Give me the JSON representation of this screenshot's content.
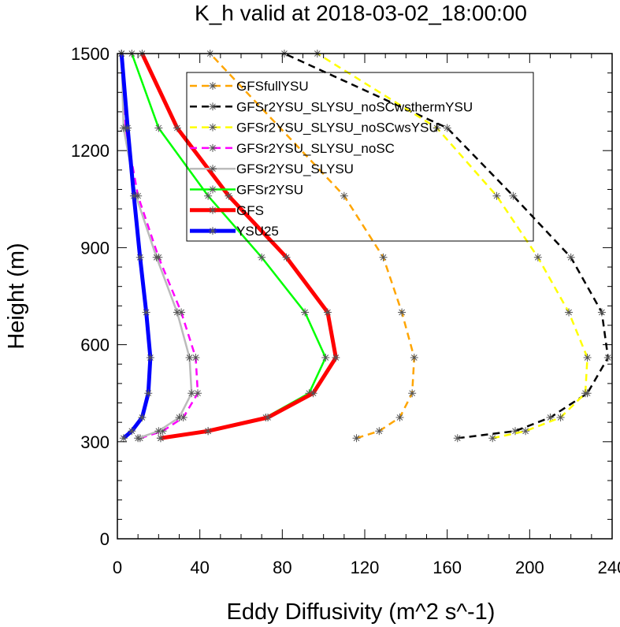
{
  "chart_data": {
    "type": "line",
    "title": "K_h valid at 2018-03-02_18:00:00",
    "xlabel": "Eddy Diffusivity (m^2 s^-1)",
    "ylabel": "Height (m)",
    "xlim": [
      0,
      240
    ],
    "ylim": [
      0,
      1500
    ],
    "xticks": [
      "0",
      "40",
      "80",
      "120",
      "160",
      "200",
      "240"
    ],
    "yticks": [
      "0",
      "300",
      "600",
      "900",
      "1200",
      "1500"
    ],
    "xtick_values": [
      0,
      40,
      80,
      120,
      160,
      200,
      240
    ],
    "ytick_values": [
      0,
      300,
      600,
      900,
      1200,
      1500
    ],
    "legend_position": "top-center",
    "series": [
      {
        "name": "GFSfullYSU",
        "color": "#ffa500",
        "dash": "dashed",
        "width": 2.5,
        "markers": true,
        "x": [
          116,
          127,
          137,
          143,
          144,
          138,
          129,
          110,
          45
        ],
        "y": [
          311,
          333,
          375,
          450,
          560,
          700,
          870,
          1060,
          1500
        ]
      },
      {
        "name": "GFSr2YSU_SLYSU_noSCwsthermYSU",
        "color": "#000000",
        "dash": "dashed",
        "width": 2.5,
        "markers": true,
        "x": [
          165,
          193,
          210,
          228,
          238,
          235,
          220,
          192,
          160,
          81
        ],
        "y": [
          311,
          333,
          375,
          450,
          560,
          700,
          870,
          1060,
          1270,
          1500
        ]
      },
      {
        "name": "GFSr2YSU_SLYSU_noSCwsYSU",
        "color": "#ffff00",
        "dash": "dashed",
        "width": 2.5,
        "markers": true,
        "x": [
          182,
          198,
          215,
          227,
          228,
          219,
          204,
          184,
          155,
          97
        ],
        "y": [
          311,
          333,
          375,
          450,
          560,
          700,
          870,
          1060,
          1270,
          1500
        ]
      },
      {
        "name": "GFSr2YSU_SLYSU_noSC",
        "color": "#ff00ff",
        "dash": "dashed",
        "width": 2.5,
        "markers": true,
        "x": [
          11,
          22,
          32,
          39,
          38,
          31,
          20,
          10,
          4,
          2
        ],
        "y": [
          311,
          333,
          375,
          450,
          560,
          700,
          870,
          1060,
          1270,
          1500
        ]
      },
      {
        "name": "GFSr2YSU_SLYSU",
        "color": "#bbbbbb",
        "dash": "solid",
        "width": 2.5,
        "markers": true,
        "x": [
          10,
          20,
          30,
          36,
          35,
          29,
          19,
          9,
          3,
          2
        ],
        "y": [
          311,
          333,
          375,
          450,
          560,
          700,
          870,
          1060,
          1270,
          1500
        ]
      },
      {
        "name": "GFSr2YSU",
        "color": "#00ff00",
        "dash": "solid",
        "width": 2.5,
        "markers": true,
        "x": [
          21,
          44,
          72,
          93,
          101,
          91,
          70,
          44,
          20,
          7
        ],
        "y": [
          311,
          333,
          375,
          450,
          560,
          700,
          870,
          1060,
          1270,
          1500
        ]
      },
      {
        "name": "GFS",
        "color": "#ff0000",
        "dash": "solid",
        "width": 5,
        "markers": false,
        "x": [
          21,
          44,
          73,
          95,
          106,
          102,
          82,
          54,
          29,
          12
        ],
        "y": [
          311,
          333,
          375,
          450,
          560,
          700,
          870,
          1060,
          1270,
          1500
        ]
      },
      {
        "name": "YSU25",
        "color": "#0000ff",
        "dash": "solid",
        "width": 5,
        "markers": false,
        "x": [
          3,
          7,
          12,
          15,
          16,
          14,
          11,
          8,
          5,
          2
        ],
        "y": [
          311,
          333,
          375,
          450,
          560,
          700,
          870,
          1060,
          1270,
          1500
        ]
      }
    ]
  }
}
